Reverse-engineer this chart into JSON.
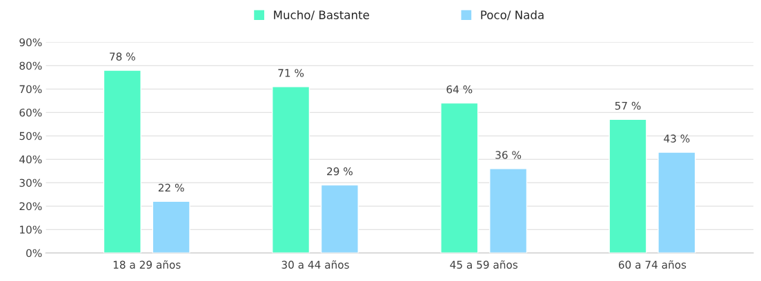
{
  "chart_data": {
    "type": "bar",
    "categories": [
      "18 a 29 años",
      "30 a 44 años",
      "45 a 59 años",
      "60 a 74 años"
    ],
    "series": [
      {
        "name": "Mucho/ Bastante",
        "color": "#52f9c6",
        "values": [
          78,
          71,
          64,
          57
        ],
        "value_labels": [
          "78 %",
          "71 %",
          "64 %",
          "57 %"
        ]
      },
      {
        "name": "Poco/ Nada",
        "color": "#8fd7fd",
        "values": [
          22,
          29,
          36,
          43
        ],
        "value_labels": [
          "22 %",
          "29 %",
          "36 %",
          "43 %"
        ]
      }
    ],
    "ylim": [
      0,
      90
    ],
    "yticks": [
      {
        "value": 0,
        "label": "0%"
      },
      {
        "value": 10,
        "label": "10%"
      },
      {
        "value": 20,
        "label": "20%"
      },
      {
        "value": 30,
        "label": "30%"
      },
      {
        "value": 40,
        "label": "40%"
      },
      {
        "value": 50,
        "label": "50%"
      },
      {
        "value": 60,
        "label": "60%"
      },
      {
        "value": 70,
        "label": "70%"
      },
      {
        "value": 80,
        "label": "80%"
      },
      {
        "value": 90,
        "label": "90%"
      }
    ],
    "grid": "y",
    "legend": "top"
  }
}
